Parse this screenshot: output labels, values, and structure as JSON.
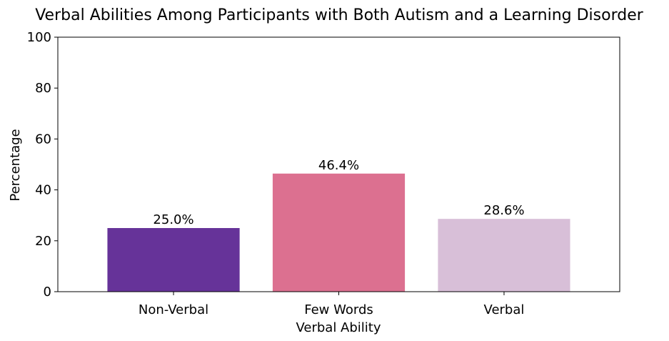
{
  "chart_data": {
    "type": "bar",
    "title": "Verbal Abilities Among Participants with Both Autism and a Learning Disorder",
    "xlabel": "Verbal Ability",
    "ylabel": "Percentage",
    "categories": [
      "Non-Verbal",
      "Few Words",
      "Verbal"
    ],
    "values": [
      25.0,
      46.4,
      28.6
    ],
    "data_labels": [
      "25.0%",
      "46.4%",
      "28.6%"
    ],
    "colors": [
      "#663399",
      "#dc7090",
      "#d8bfd8"
    ],
    "ylim": [
      0,
      100
    ],
    "yticks": [
      0,
      20,
      40,
      60,
      80,
      100
    ],
    "grid": false,
    "legend": "none"
  }
}
